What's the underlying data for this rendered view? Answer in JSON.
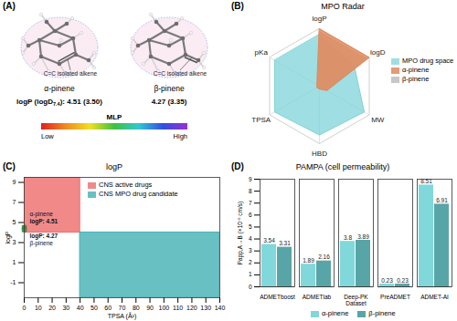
{
  "panel_a": {
    "label": "(A)",
    "logp_prefix": "logP (logD",
    "logp_subscript": "7.4",
    "logp_suffix": "): ",
    "molecules": [
      {
        "name": "α-pinene",
        "annotation": "C=C isolated alkene",
        "values_text": "4.51 (3.50)"
      },
      {
        "name": "β-pinene",
        "annotation": "C=C isolated alkene",
        "values_text": "4.27 (3.35)"
      }
    ],
    "colorbar": {
      "title": "MLP",
      "low": "Low",
      "high": "High"
    }
  },
  "chart_data": [
    {
      "type": "radar",
      "panel_label": "(B)",
      "title": "MPO Radar",
      "axes": [
        "logP",
        "logD",
        "MW",
        "HBD",
        "TPSA",
        "pKa"
      ],
      "rlim": [
        0,
        1
      ],
      "tick_labels": false,
      "legend": "right",
      "series": [
        {
          "name": "MPO drug space",
          "color": "#7fd3da",
          "values": [
            0.9,
            0.7,
            0.9,
            0.85,
            0.9,
            0.9
          ]
        },
        {
          "name": "α-pinene",
          "color": "#e08a5c",
          "values": [
            1.0,
            1.0,
            0.15,
            0.05,
            0.05,
            0.05
          ]
        },
        {
          "name": "β-pinene",
          "color": "#bdbdbd",
          "values": [
            0.95,
            0.95,
            0.15,
            0.05,
            0.05,
            0.05
          ]
        }
      ]
    },
    {
      "type": "scatter",
      "panel_label": "(C)",
      "title": "logP",
      "x_label": "TPSA (Å²)",
      "y_label": "logP",
      "xlim": [
        0,
        140
      ],
      "xticks": [
        0,
        10,
        20,
        30,
        40,
        50,
        60,
        70,
        80,
        90,
        100,
        110,
        120,
        130,
        140
      ],
      "ylim": [
        -2.5,
        9.5
      ],
      "yticks": [
        -1,
        1,
        3,
        5,
        7,
        9
      ],
      "legend": "top",
      "regions": [
        {
          "name": "CNS active drugs",
          "color": "#f07474",
          "x": [
            0,
            40
          ],
          "y": [
            4,
            9.5
          ]
        },
        {
          "name": "CNS MPO drug candidate",
          "color": "#4fb5b8",
          "x": [
            40,
            140
          ],
          "y": [
            -2.5,
            4
          ]
        }
      ],
      "series": [
        {
          "name": "α-pinene",
          "color": "#3a9a4a",
          "marker": "square",
          "x": [
            0
          ],
          "values": [
            4.51
          ],
          "value_labels": [
            "logP: 4.51"
          ]
        },
        {
          "name": "β-pinene",
          "color": "#3a9a4a",
          "marker": "square",
          "x": [
            0
          ],
          "values": [
            4.27
          ],
          "value_labels": [
            "logP: 4.27"
          ]
        }
      ]
    },
    {
      "type": "bar",
      "panel_label": "(D)",
      "title": "PAMPA (cell permeability)",
      "x_label": "Dataset",
      "y_label": "Papp,A→B (×10⁻⁶ cm/s)",
      "categories": [
        "ADMETboost",
        "ADMETlab",
        "Deep-PK",
        "PreADMET",
        "ADMET-AI"
      ],
      "ylim": [
        0,
        9
      ],
      "yticks": [
        0,
        1,
        2,
        3,
        4,
        5,
        6,
        7,
        8,
        9
      ],
      "data_labels": true,
      "legend": "bottom",
      "series": [
        {
          "name": "α-pinene",
          "color": "#80d8da",
          "values": [
            3.54,
            1.89,
            3.8,
            0.23,
            8.51
          ]
        },
        {
          "name": "β-pinene",
          "color": "#58a5a8",
          "values": [
            3.31,
            2.16,
            3.89,
            0.23,
            6.91
          ]
        }
      ]
    }
  ]
}
